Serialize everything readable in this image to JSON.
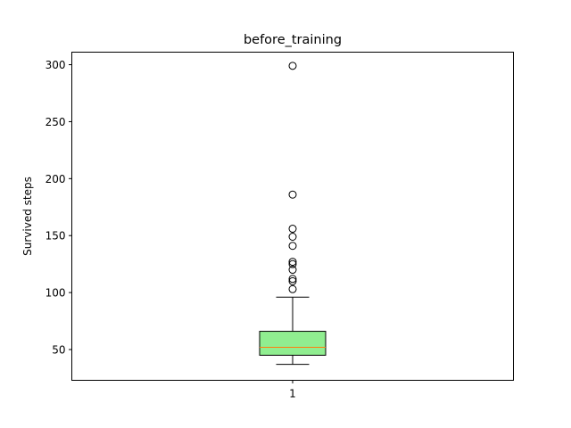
{
  "chart_data": {
    "type": "box",
    "title": "before_training",
    "xlabel": "",
    "ylabel": "Survived steps",
    "categories": [
      "1"
    ],
    "ylim": [
      23,
      311
    ],
    "yticks": [
      50,
      100,
      150,
      200,
      250,
      300
    ],
    "grid": false,
    "box": {
      "whisker_low": 37,
      "q1": 45,
      "median": 52,
      "q3": 66,
      "whisker_high": 96,
      "outliers": [
        103,
        110,
        112,
        120,
        125,
        127,
        141,
        149,
        156,
        186,
        299
      ]
    },
    "colors": {
      "box_fill": "#90EE90",
      "median": "#FF7F0E",
      "edge": "#000000"
    }
  }
}
